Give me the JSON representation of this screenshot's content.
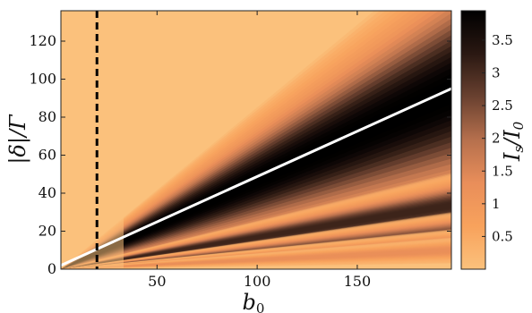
{
  "chart_data": {
    "type": "heatmap",
    "title": "",
    "xlabel": "b₀",
    "ylabel": "|δ|/Γ",
    "colorbar_label": "I_s/I_0",
    "xlim": [
      2,
      197
    ],
    "ylim": [
      0,
      136
    ],
    "x_ticks": [
      {
        "value": 50,
        "label": "50"
      },
      {
        "value": 100,
        "label": "100"
      },
      {
        "value": 150,
        "label": "150"
      }
    ],
    "y_ticks": [
      {
        "value": 0,
        "label": "0"
      },
      {
        "value": 20,
        "label": "20"
      },
      {
        "value": 40,
        "label": "40"
      },
      {
        "value": 60,
        "label": "60"
      },
      {
        "value": 80,
        "label": "80"
      },
      {
        "value": 100,
        "label": "100"
      },
      {
        "value": 120,
        "label": "120"
      }
    ],
    "colorbar_range": [
      0,
      3.95
    ],
    "colorbar_ticks": [
      {
        "value": 0.5,
        "label": "0.5"
      },
      {
        "value": 1,
        "label": "1"
      },
      {
        "value": 1.5,
        "label": "1.5"
      },
      {
        "value": 2,
        "label": "2"
      },
      {
        "value": 2.5,
        "label": "2.5"
      },
      {
        "value": 3,
        "label": "3"
      },
      {
        "value": 3.5,
        "label": "3.5"
      }
    ],
    "colormap": [
      "#fbc17c",
      "#f8a25c",
      "#e98e5a",
      "#b6704d",
      "#6a4130",
      "#2a1812",
      "#000000"
    ],
    "overlays": [
      {
        "type": "line",
        "color": "#ffffff",
        "style": "solid",
        "points": [
          [
            2,
            2
          ],
          [
            197,
            95
          ]
        ]
      },
      {
        "type": "vline",
        "color": "#000000",
        "style": "dashed",
        "x": 20
      }
    ],
    "bands": [
      {
        "slope": 0.475,
        "width": 0.22,
        "intensity": 3.95
      },
      {
        "slope": 0.17,
        "width": 0.05,
        "intensity": 3.0
      },
      {
        "slope": 0.1,
        "width": 0.03,
        "intensity": 2.3
      },
      {
        "slope": 0.068,
        "width": 0.022,
        "intensity": 1.5
      },
      {
        "slope": 0.05,
        "width": 0.02,
        "intensity": 1.1
      }
    ]
  }
}
